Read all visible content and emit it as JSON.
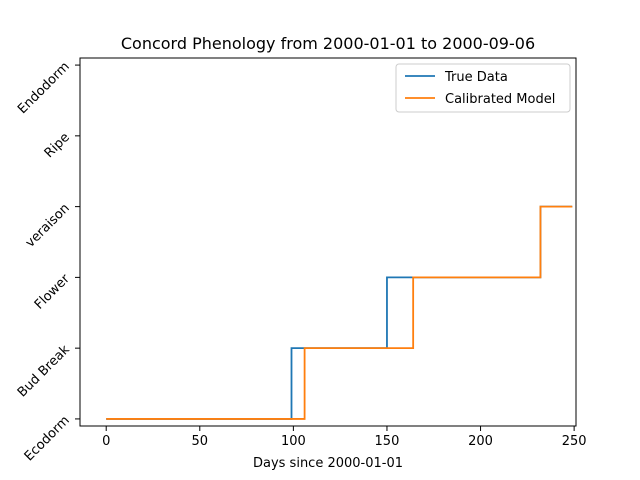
{
  "chart_data": {
    "type": "line",
    "title": "Concord Phenology from 2000-01-01 to 2000-09-06",
    "xlabel": "Days since 2000-01-01",
    "ylabel": "",
    "xlim": [
      -14,
      251
    ],
    "ylim": [
      -0.1,
      5.1
    ],
    "x_ticks": [
      0,
      50,
      100,
      150,
      200,
      250
    ],
    "y_categories": [
      "Ecodorm",
      "Bud Break",
      "Flower",
      "veraison",
      "Ripe",
      "Endodorm"
    ],
    "legend_position": "upper right",
    "series": [
      {
        "name": "True Data",
        "color": "#1f77b4",
        "x": [
          0,
          99,
          99,
          150,
          150,
          232,
          232,
          249
        ],
        "y": [
          0,
          0,
          1,
          1,
          2,
          2,
          3,
          3
        ]
      },
      {
        "name": "Calibrated Model",
        "color": "#ff7f0e",
        "x": [
          0,
          106,
          106,
          164,
          164,
          232,
          232,
          249
        ],
        "y": [
          0,
          0,
          1,
          1,
          2,
          2,
          3,
          3
        ]
      }
    ]
  }
}
